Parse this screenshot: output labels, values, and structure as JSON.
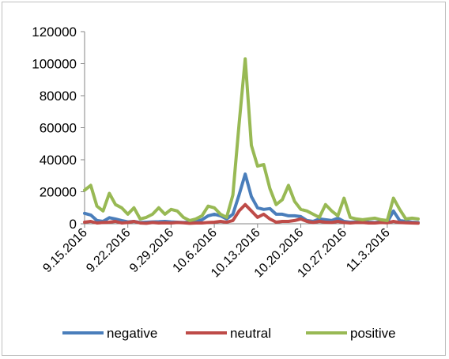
{
  "chart_data": {
    "type": "line",
    "title": "",
    "xlabel": "",
    "ylabel": "",
    "ylim": [
      0,
      120000
    ],
    "y_ticks": [
      0,
      20000,
      40000,
      60000,
      80000,
      100000,
      120000
    ],
    "x_tick_labels": [
      "9.15.2016",
      "9.22.2016",
      "9.29.2016",
      "10.6.2016",
      "10.13.2016",
      "10.20.2016",
      "10.27.2016",
      "11.3.2016"
    ],
    "x_tick_positions": [
      0,
      7,
      14,
      21,
      28,
      35,
      42,
      49
    ],
    "grid": false,
    "legend_position": "bottom",
    "series": [
      {
        "name": "negative",
        "color": "#4a7ebb",
        "values": [
          6500,
          5500,
          2000,
          1500,
          3800,
          3000,
          2000,
          1200,
          1500,
          800,
          1000,
          1200,
          1300,
          1500,
          1200,
          1000,
          800,
          1000,
          1500,
          2500,
          5000,
          6000,
          5000,
          3000,
          6000,
          18000,
          31000,
          17000,
          10000,
          9000,
          9500,
          6000,
          6000,
          5000,
          5000,
          4500,
          2000,
          1500,
          3000,
          2500,
          2000,
          3500,
          1500,
          1000,
          1200,
          1500,
          1000,
          800,
          1200,
          1000,
          8000,
          2000,
          1500,
          1000,
          800
        ]
      },
      {
        "name": "neutral",
        "color": "#be4b48",
        "values": [
          1000,
          1500,
          500,
          800,
          1000,
          1500,
          500,
          800,
          1500,
          500,
          300,
          800,
          500,
          600,
          500,
          800,
          600,
          300,
          500,
          500,
          800,
          1000,
          1500,
          1000,
          2000,
          8000,
          12000,
          8000,
          4000,
          6000,
          3000,
          1000,
          1500,
          1500,
          2000,
          3000,
          1500,
          800,
          1500,
          1000,
          800,
          1500,
          800,
          500,
          800,
          800,
          500,
          500,
          800,
          600,
          1500,
          800,
          600,
          500,
          400
        ]
      },
      {
        "name": "positive",
        "color": "#98b954",
        "values": [
          21000,
          24000,
          11000,
          8000,
          19000,
          12000,
          10000,
          6000,
          10000,
          3000,
          4000,
          6000,
          10000,
          6000,
          9000,
          8000,
          4000,
          2000,
          3000,
          5000,
          11000,
          10000,
          6000,
          4000,
          18000,
          62000,
          103000,
          49000,
          36000,
          37000,
          22000,
          12000,
          15000,
          24000,
          14000,
          9000,
          8000,
          6000,
          4000,
          12000,
          8000,
          5000,
          16000,
          4000,
          3000,
          2500,
          3000,
          3500,
          2500,
          2000,
          16000,
          9000,
          3000,
          3500,
          3000
        ]
      }
    ]
  }
}
